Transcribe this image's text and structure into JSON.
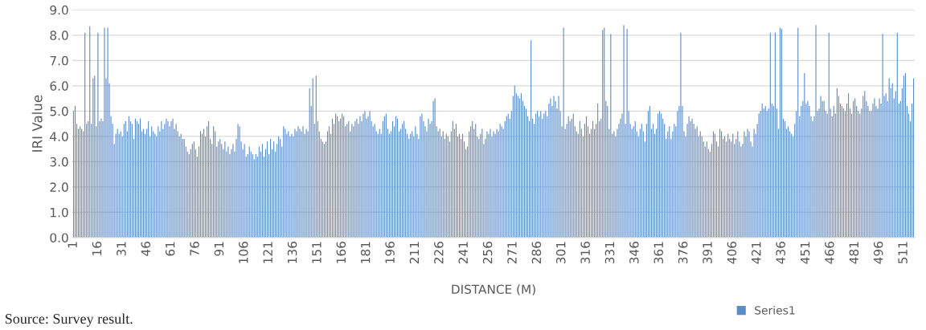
{
  "chart_data": {
    "type": "bar",
    "xlabel": "DISTANCE (M)",
    "ylabel": "IRI Value",
    "annotations": [
      "Source: Survey result."
    ],
    "ylim": [
      0,
      9
    ],
    "yticks": [
      {
        "value": 0,
        "label": "0.0"
      },
      {
        "value": 1,
        "label": "1.0"
      },
      {
        "value": 2,
        "label": "2.0"
      },
      {
        "value": 3,
        "label": "3.0"
      },
      {
        "value": 4,
        "label": "4.0"
      },
      {
        "value": 5,
        "label": "5.0"
      },
      {
        "value": 6,
        "label": "6.0"
      },
      {
        "value": 7,
        "label": "7.0"
      },
      {
        "value": 8,
        "label": "8.0"
      },
      {
        "value": 9,
        "label": "9.0"
      }
    ],
    "grid": "y",
    "legend": "bottom right",
    "categories": [
      "1",
      null,
      null,
      null,
      null,
      null,
      null,
      null,
      null,
      null,
      null,
      null,
      null,
      null,
      null,
      "16",
      null,
      null,
      null,
      null,
      null,
      null,
      null,
      null,
      null,
      null,
      null,
      null,
      null,
      null,
      "31",
      null,
      null,
      null,
      null,
      null,
      null,
      null,
      null,
      null,
      null,
      null,
      null,
      null,
      null,
      "46",
      null,
      null,
      null,
      null,
      null,
      null,
      null,
      null,
      null,
      null,
      null,
      null,
      null,
      null,
      "61",
      null,
      null,
      null,
      null,
      null,
      null,
      null,
      null,
      null,
      null,
      null,
      null,
      null,
      null,
      "76",
      null,
      null,
      null,
      null,
      null,
      null,
      null,
      null,
      null,
      null,
      null,
      null,
      null,
      null,
      "91",
      null,
      null,
      null,
      null,
      null,
      null,
      null,
      null,
      null,
      null,
      null,
      null,
      null,
      null,
      "106",
      null,
      null,
      null,
      null,
      null,
      null,
      null,
      null,
      null,
      null,
      null,
      null,
      null,
      null,
      "121",
      null,
      null,
      null,
      null,
      null,
      null,
      null,
      null,
      null,
      null,
      null,
      null,
      null,
      null,
      "136",
      null,
      null,
      null,
      null,
      null,
      null,
      null,
      null,
      null,
      null,
      null,
      null,
      null,
      null,
      "151",
      null,
      null,
      null,
      null,
      null,
      null,
      null,
      null,
      null,
      null,
      null,
      null,
      null,
      null,
      "166",
      null,
      null,
      null,
      null,
      null,
      null,
      null,
      null,
      null,
      null,
      null,
      null,
      null,
      null,
      "181",
      null,
      null,
      null,
      null,
      null,
      null,
      null,
      null,
      null,
      null,
      null,
      null,
      null,
      null,
      "196",
      null,
      null,
      null,
      null,
      null,
      null,
      null,
      null,
      null,
      null,
      null,
      null,
      null,
      null,
      "211",
      null,
      null,
      null,
      null,
      null,
      null,
      null,
      null,
      null,
      null,
      null,
      null,
      null,
      null,
      "226",
      null,
      null,
      null,
      null,
      null,
      null,
      null,
      null,
      null,
      null,
      null,
      null,
      null,
      null,
      "241",
      null,
      null,
      null,
      null,
      null,
      null,
      null,
      null,
      null,
      null,
      null,
      null,
      null,
      null,
      "256",
      null,
      null,
      null,
      null,
      null,
      null,
      null,
      null,
      null,
      null,
      null,
      null,
      null,
      null,
      "271",
      null,
      null,
      null,
      null,
      null,
      null,
      null,
      null,
      null,
      null,
      null,
      null,
      null,
      null,
      "286",
      null,
      null,
      null,
      null,
      null,
      null,
      null,
      null,
      null,
      null,
      null,
      null,
      null,
      null,
      "301",
      null,
      null,
      null,
      null,
      null,
      null,
      null,
      null,
      null,
      null,
      null,
      null,
      null,
      null,
      "316",
      null,
      null,
      null,
      null,
      null,
      null,
      null,
      null,
      null,
      null,
      null,
      null,
      null,
      null,
      "331",
      null,
      null,
      null,
      null,
      null,
      null,
      null,
      null,
      null,
      null,
      null,
      null,
      null,
      null,
      "346",
      null,
      null,
      null,
      null,
      null,
      null,
      null,
      null,
      null,
      null,
      null,
      null,
      null,
      null,
      "361",
      null,
      null,
      null,
      null,
      null,
      null,
      null,
      null,
      null,
      null,
      null,
      null,
      null,
      null,
      "376",
      null,
      null,
      null,
      null,
      null,
      null,
      null,
      null,
      null,
      null,
      null,
      null,
      null,
      null,
      "391",
      null,
      null,
      null,
      null,
      null,
      null,
      null,
      null,
      null,
      null,
      null,
      null,
      null,
      null,
      "406",
      null,
      null,
      null,
      null,
      null,
      null,
      null,
      null,
      null,
      null,
      null,
      null,
      null,
      null,
      "421",
      null,
      null,
      null,
      null,
      null,
      null,
      null,
      null,
      null,
      null,
      null,
      null,
      null,
      null,
      "436",
      null,
      null,
      null,
      null,
      null,
      null,
      null,
      null,
      null,
      null,
      null,
      null,
      null,
      null,
      "451",
      null,
      null,
      null,
      null,
      null,
      null,
      null,
      null,
      null,
      null,
      null,
      null,
      null,
      null,
      "466",
      null,
      null,
      null,
      null,
      null,
      null,
      null,
      null,
      null,
      null,
      null,
      null,
      null,
      null,
      "481",
      null,
      null,
      null,
      null,
      null,
      null,
      null,
      null,
      null,
      null,
      null,
      null,
      null,
      null,
      "496",
      null,
      null,
      null,
      null,
      null,
      null,
      null,
      null,
      null,
      null,
      null,
      null,
      null,
      null,
      "511",
      null,
      null,
      null,
      null,
      null,
      null
    ],
    "series": [
      {
        "name": "Series1",
        "color": "#5b8cc8",
        "values": [
          5.0,
          5.2,
          4.5,
          4.3,
          4.4,
          4.3,
          4.2,
          8.1,
          4.5,
          4.6,
          8.35,
          4.5,
          6.3,
          6.4,
          4.4,
          8.1,
          4.6,
          4.7,
          4.6,
          8.3,
          6.3,
          8.3,
          6.1,
          4.8,
          4.5,
          3.7,
          4.1,
          4.3,
          4.1,
          4.2,
          4.0,
          4.5,
          4.6,
          4.2,
          4.8,
          4.6,
          4.5,
          3.9,
          4.7,
          4.6,
          4.5,
          4.7,
          4.2,
          4.3,
          4.1,
          4.3,
          4.6,
          4.0,
          4.4,
          4.2,
          4.1,
          4.0,
          4.4,
          4.2,
          4.6,
          4.3,
          4.5,
          4.7,
          4.6,
          4.4,
          4.6,
          4.7,
          4.3,
          4.5,
          4.2,
          4.0,
          4.1,
          3.9,
          3.9,
          3.6,
          3.4,
          3.3,
          3.5,
          3.7,
          3.8,
          3.5,
          3.2,
          3.6,
          4.2,
          4.1,
          4.3,
          4.0,
          4.4,
          4.6,
          3.9,
          3.7,
          4.4,
          4.2,
          3.6,
          3.8,
          3.9,
          3.7,
          3.5,
          3.8,
          3.4,
          3.6,
          3.3,
          3.5,
          3.7,
          3.4,
          3.9,
          4.5,
          4.4,
          3.8,
          3.5,
          3.7,
          3.2,
          3.3,
          3.6,
          3.4,
          3.3,
          3.1,
          3.3,
          3.2,
          3.6,
          3.4,
          3.7,
          3.2,
          3.5,
          3.8,
          3.3,
          3.9,
          3.5,
          3.8,
          3.4,
          3.7,
          4.0,
          3.9,
          3.6,
          4.4,
          4.3,
          4.1,
          4.2,
          4.0,
          4.1,
          4.0,
          4.3,
          4.2,
          4.4,
          4.3,
          4.2,
          4.4,
          4.1,
          4.3,
          4.2,
          5.9,
          5.2,
          6.3,
          4.5,
          6.4,
          4.6,
          4.2,
          3.9,
          3.8,
          3.7,
          3.8,
          4.2,
          4.4,
          4.1,
          4.7,
          4.5,
          4.9,
          4.8,
          4.6,
          4.7,
          4.9,
          4.8,
          4.4,
          4.5,
          4.6,
          4.2,
          4.5,
          4.4,
          4.6,
          4.7,
          4.5,
          4.8,
          4.6,
          4.9,
          5.0,
          4.7,
          4.8,
          5.0,
          4.6,
          4.4,
          4.5,
          4.2,
          4.1,
          4.3,
          4.1,
          4.6,
          4.8,
          4.9,
          4.3,
          4.1,
          4.2,
          4.6,
          4.4,
          4.8,
          4.7,
          4.2,
          4.3,
          4.5,
          4.6,
          4.3,
          4.1,
          3.9,
          4.1,
          4.2,
          4.0,
          4.4,
          4.1,
          3.9,
          4.8,
          4.9,
          4.6,
          4.4,
          4.2,
          4.7,
          4.5,
          4.6,
          5.4,
          5.5,
          4.4,
          4.2,
          4.3,
          4.0,
          4.2,
          3.9,
          4.1,
          4.0,
          3.8,
          4.2,
          4.6,
          4.3,
          4.5,
          4.0,
          4.1,
          3.9,
          4.1,
          3.8,
          3.5,
          3.6,
          4.2,
          4.4,
          4.6,
          4.3,
          4.5,
          4.0,
          3.9,
          4.1,
          4.3,
          3.7,
          3.9,
          4.2,
          4.1,
          4.3,
          4.0,
          4.2,
          4.1,
          4.3,
          4.2,
          4.5,
          4.4,
          4.3,
          4.6,
          4.8,
          4.9,
          4.7,
          5.0,
          5.6,
          6.0,
          5.7,
          5.6,
          5.5,
          5.7,
          5.4,
          5.2,
          5.1,
          4.8,
          4.6,
          7.8,
          4.7,
          4.5,
          4.9,
          5.0,
          4.8,
          5.0,
          4.7,
          4.9,
          5.0,
          4.8,
          5.3,
          5.5,
          5.2,
          5.6,
          5.4,
          5.1,
          5.6,
          5.0,
          4.4,
          8.3,
          4.3,
          4.5,
          4.8,
          4.6,
          4.7,
          4.9,
          4.4,
          4.2,
          4.1,
          4.6,
          4.3,
          4.0,
          4.5,
          4.8,
          4.4,
          4.1,
          4.3,
          4.6,
          4.3,
          4.5,
          5.3,
          4.6,
          4.7,
          8.2,
          8.3,
          5.4,
          5.2,
          4.3,
          8.05,
          4.1,
          4.2,
          4.0,
          4.3,
          4.5,
          4.7,
          4.9,
          8.4,
          4.5,
          8.25,
          5.0,
          4.5,
          4.3,
          4.4,
          4.6,
          4.2,
          4.0,
          4.3,
          4.5,
          4.2,
          3.8,
          4.5,
          5.0,
          5.2,
          4.3,
          4.5,
          4.1,
          4.3,
          4.9,
          5.0,
          4.9,
          4.7,
          4.5,
          3.9,
          4.2,
          4.4,
          3.9,
          4.2,
          4.5,
          4.4,
          5.0,
          5.2,
          8.1,
          5.2,
          4.2,
          4.0,
          4.5,
          4.8,
          4.6,
          4.7,
          4.5,
          4.3,
          4.4,
          4.0,
          4.2,
          4.0,
          3.8,
          3.6,
          3.8,
          3.5,
          3.4,
          3.7,
          4.2,
          4.1,
          3.8,
          3.6,
          4.3,
          4.2,
          3.9,
          4.0,
          3.8,
          4.1,
          3.9,
          3.8,
          4.1,
          3.7,
          3.9,
          4.2,
          3.8,
          3.6,
          3.7,
          4.2,
          4.0,
          4.3,
          4.2,
          3.8,
          3.6,
          4.3,
          4.1,
          4.5,
          4.9,
          5.0,
          5.3,
          5.1,
          5.2,
          5.0,
          5.1,
          8.1,
          5.3,
          5.2,
          8.1,
          5.1,
          4.3,
          8.3,
          8.25,
          4.7,
          4.6,
          4.3,
          4.4,
          4.2,
          4.1,
          4.0,
          4.5,
          5.0,
          8.3,
          4.8,
          5.2,
          5.4,
          6.5,
          5.3,
          5.4,
          5.2,
          4.8,
          4.6,
          4.8,
          8.4,
          5.0,
          5.1,
          5.6,
          5.4,
          5.4,
          5.0,
          4.9,
          8.1,
          5.1,
          4.8,
          5.2,
          4.9,
          5.9,
          5.6,
          5.3,
          5.2,
          5.1,
          5.0,
          5.3,
          5.7,
          5.1,
          4.9,
          5.4,
          5.5,
          5.2,
          5.0,
          4.9,
          5.1,
          5.6,
          5.8,
          5.4,
          5.2,
          5.0,
          5.0,
          5.3,
          5.5,
          5.2,
          5.1,
          5.5,
          5.3,
          8.05,
          5.6,
          5.7,
          5.4,
          6.3,
          5.9,
          6.1,
          5.5,
          5.8,
          8.1,
          5.3,
          5.4,
          5.9,
          6.4,
          6.5,
          5.2,
          4.9,
          4.6,
          5.3,
          6.3
        ]
      }
    ]
  }
}
